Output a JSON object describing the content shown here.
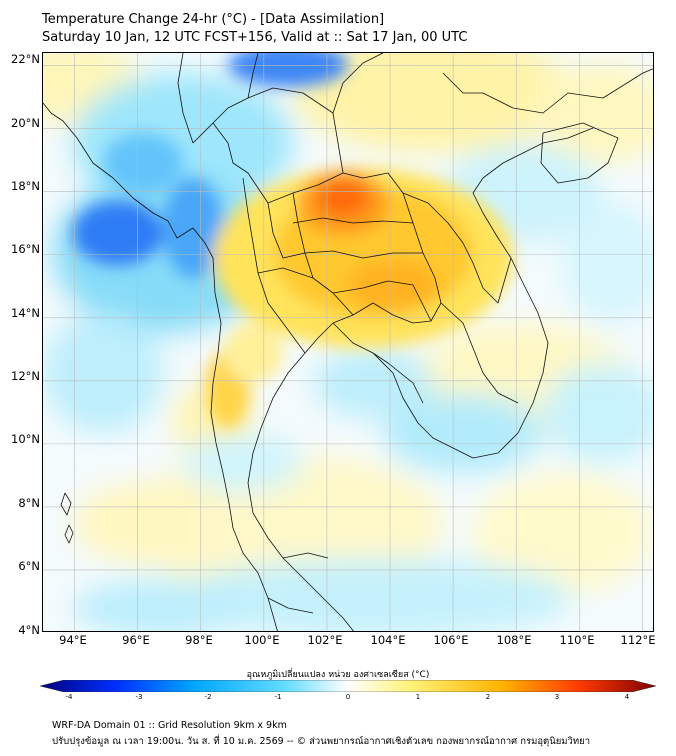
{
  "header": {
    "title_line1": "Temperature Change 24-hr (°C) - [Data Assimilation]",
    "title_line2": "Saturday 10 Jan, 12 UTC FCST+156, Valid at :: Sat 17 Jan, 00 UTC"
  },
  "map": {
    "lat_labels": [
      "22°N",
      "20°N",
      "18°N",
      "16°N",
      "14°N",
      "12°N",
      "10°N",
      "8°N",
      "6°N",
      "4°N"
    ],
    "lon_labels": [
      "94°E",
      "96°E",
      "98°E",
      "100°E",
      "102°E",
      "104°E",
      "106°E",
      "108°E",
      "110°E",
      "112°E"
    ],
    "lat_range": [
      4,
      22.4
    ],
    "lon_range": [
      93,
      112.4
    ],
    "gridlines": true
  },
  "colorbar": {
    "label": "อุณหภูมิเปลี่ยนแปลง หน่วย องศาเซลเซียส (°C)",
    "ticks": [
      "-4",
      "-3",
      "-2",
      "-1",
      "0",
      "1",
      "2",
      "3",
      "4"
    ],
    "range": [
      -4,
      4
    ],
    "colors": [
      "#00007f",
      "#0030ff",
      "#00a6ff",
      "#66ddff",
      "#ffffff",
      "#fff37a",
      "#ffb300",
      "#ff3a00",
      "#7f0000"
    ]
  },
  "footer": {
    "line1": "WRF-DA Domain 01 :: Grid Resolution 9km x 9km",
    "line2": "ปรับปรุงข้อมูล ณ เวลา 19:00น. วัน ส. ที่ 10 ม.ค. 2569 -- © ส่วนพยากรณ์อากาศเชิงตัวเลข กองพยากรณ์อากาศ กรมอุตุนิยมวิทยา"
  }
}
